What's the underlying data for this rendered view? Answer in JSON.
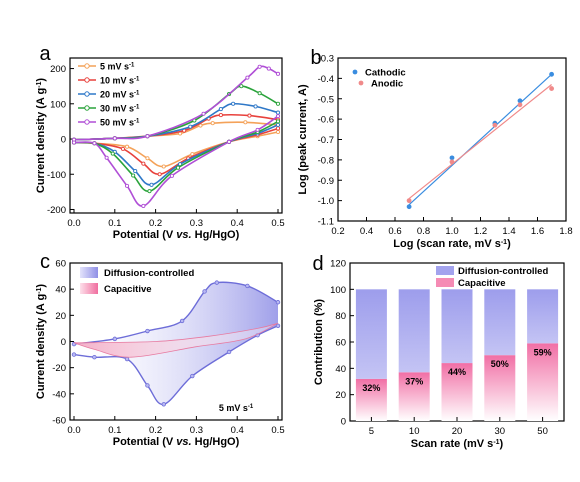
{
  "chart_data": [
    {
      "panel_label": "a",
      "type": "line",
      "xlabel_parts": [
        "Potential (V ",
        "vs.",
        " Hg/HgO)"
      ],
      "ylabel": "Current density (A g",
      "ylabel_sup": "-1",
      "ylabel_end": ")",
      "xlim": [
        0.0,
        0.5
      ],
      "ylim": [
        -210,
        230
      ],
      "xticks": [
        0.0,
        0.1,
        0.2,
        0.3,
        0.4,
        0.5
      ],
      "xtick_labels": [
        "0.0",
        "0.1",
        "0.2",
        "0.3",
        "0.4",
        "0.5"
      ],
      "yticks": [
        -200,
        -100,
        0,
        100,
        200
      ],
      "ytick_labels": [
        "-200",
        "-100",
        "0",
        "100",
        "200"
      ],
      "legend_position": "top-left",
      "series": [
        {
          "name": "5 mV s",
          "name_sup": "-1",
          "color": "#f4a259",
          "anodic_peak": [
            0.34,
            45
          ],
          "cathodic_peak": [
            0.22,
            -78
          ],
          "end_upper": 40,
          "end_lower": 20
        },
        {
          "name": "10 mV s",
          "name_sup": "-1",
          "color": "#e8413c",
          "anodic_peak": [
            0.36,
            68
          ],
          "cathodic_peak": [
            0.21,
            -100
          ],
          "end_upper": 55,
          "end_lower": 30
        },
        {
          "name": "20 mV s",
          "name_sup": "-1",
          "color": "#2f78c8",
          "anodic_peak": [
            0.39,
            100
          ],
          "cathodic_peak": [
            0.19,
            -130
          ],
          "end_upper": 75,
          "end_lower": 40
        },
        {
          "name": "30 mV s",
          "name_sup": "-1",
          "color": "#2aa33b",
          "anodic_peak": [
            0.41,
            150
          ],
          "cathodic_peak": [
            0.185,
            -148
          ],
          "end_upper": 100,
          "end_lower": 50
        },
        {
          "name": "50 mV s",
          "name_sup": "-1",
          "color": "#b04fd6",
          "anodic_peak": [
            0.455,
            205
          ],
          "cathodic_peak": [
            0.17,
            -190
          ],
          "end_upper": 185,
          "end_lower": 65
        }
      ]
    },
    {
      "panel_label": "b",
      "type": "scatter",
      "xlabel": "Log (scan rate, mV s",
      "xlabel_sup": "-1",
      "xlabel_end": ")",
      "ylabel": "Log (peak current, A)",
      "xlim": [
        0.2,
        1.8
      ],
      "ylim": [
        -1.1,
        -0.3
      ],
      "xticks": [
        0.2,
        0.4,
        0.6,
        0.8,
        1.0,
        1.2,
        1.4,
        1.6,
        1.8
      ],
      "xtick_labels": [
        "0.2",
        "0.4",
        "0.6",
        "0.8",
        "1.0",
        "1.2",
        "1.4",
        "1.6",
        "1.8"
      ],
      "yticks": [
        -1.1,
        -1.0,
        -0.9,
        -0.8,
        -0.7,
        -0.6,
        -0.5,
        -0.4,
        -0.3
      ],
      "ytick_labels": [
        "-1.1",
        "-1.0",
        "-0.9",
        "-0.8",
        "-0.7",
        "-0.6",
        "-0.5",
        "-0.4",
        "-0.3"
      ],
      "legend_position": "top-left",
      "series": [
        {
          "name": "Cathodic",
          "color": "#3a8de0",
          "x": [
            0.699,
            1.0,
            1.301,
            1.477,
            1.699
          ],
          "y": [
            -1.03,
            -0.79,
            -0.62,
            -0.51,
            -0.38
          ],
          "fit": [
            [
              0.699,
              -1.02
            ],
            [
              1.699,
              -0.38
            ]
          ]
        },
        {
          "name": "Anodic",
          "color": "#f08a8a",
          "x": [
            0.699,
            1.0,
            1.301,
            1.477,
            1.699
          ],
          "y": [
            -1.0,
            -0.81,
            -0.63,
            -0.53,
            -0.45
          ],
          "fit": [
            [
              0.699,
              -0.99
            ],
            [
              1.699,
              -0.43
            ]
          ]
        }
      ]
    },
    {
      "panel_label": "c",
      "type": "area",
      "xlabel_parts": [
        "Potential (V ",
        "vs.",
        " Hg/HgO)"
      ],
      "ylabel": "Current density (A g",
      "ylabel_sup": "-1",
      "ylabel_end": ")",
      "xlim": [
        0.0,
        0.5
      ],
      "ylim": [
        -60,
        60
      ],
      "xticks": [
        0.0,
        0.1,
        0.2,
        0.3,
        0.4,
        0.5
      ],
      "xtick_labels": [
        "0.0",
        "0.1",
        "0.2",
        "0.3",
        "0.4",
        "0.5"
      ],
      "yticks": [
        -60,
        -40,
        -20,
        0,
        20,
        40,
        60
      ],
      "ytick_labels": [
        "-60",
        "-40",
        "-20",
        "0",
        "20",
        "40",
        "60"
      ],
      "annotation": "5 mV s",
      "annotation_sup": "-1",
      "legend_position": "top-left",
      "series": [
        {
          "name": "Diffusion-controlled",
          "color": "#8f8fe6",
          "edge": "#6d6dd8",
          "anodic_peak": [
            0.35,
            45
          ],
          "cathodic_peak": [
            0.22,
            -48
          ],
          "end_upper": 30,
          "end_lower": 12
        },
        {
          "name": "Capacitive",
          "color": "#f2a6c2",
          "edge": "#e77aa0",
          "upper_end": 14,
          "lower_start": -1,
          "lower_min": [
            0.14,
            -12
          ]
        }
      ]
    },
    {
      "panel_label": "d",
      "type": "bar",
      "xlabel": "Scan rate (mV s",
      "xlabel_sup": "-1",
      "xlabel_end": ")",
      "ylabel": "Contribution (%)",
      "categories": [
        "5",
        "10",
        "20",
        "30",
        "50"
      ],
      "ylim": [
        0,
        120
      ],
      "yticks": [
        0,
        20,
        40,
        60,
        80,
        100,
        120
      ],
      "ytick_labels": [
        "0",
        "20",
        "40",
        "60",
        "80",
        "100",
        "120"
      ],
      "legend_position": "top-right",
      "series": [
        {
          "name": "Diffusion-controlled",
          "color": "#a3a3ee",
          "values": [
            68,
            63,
            56,
            50,
            41
          ]
        },
        {
          "name": "Capacitive",
          "color": "#f58bb4",
          "values": [
            32,
            37,
            44,
            50,
            59
          ],
          "value_labels": [
            "32%",
            "37%",
            "44%",
            "50%",
            "59%"
          ]
        }
      ]
    }
  ]
}
